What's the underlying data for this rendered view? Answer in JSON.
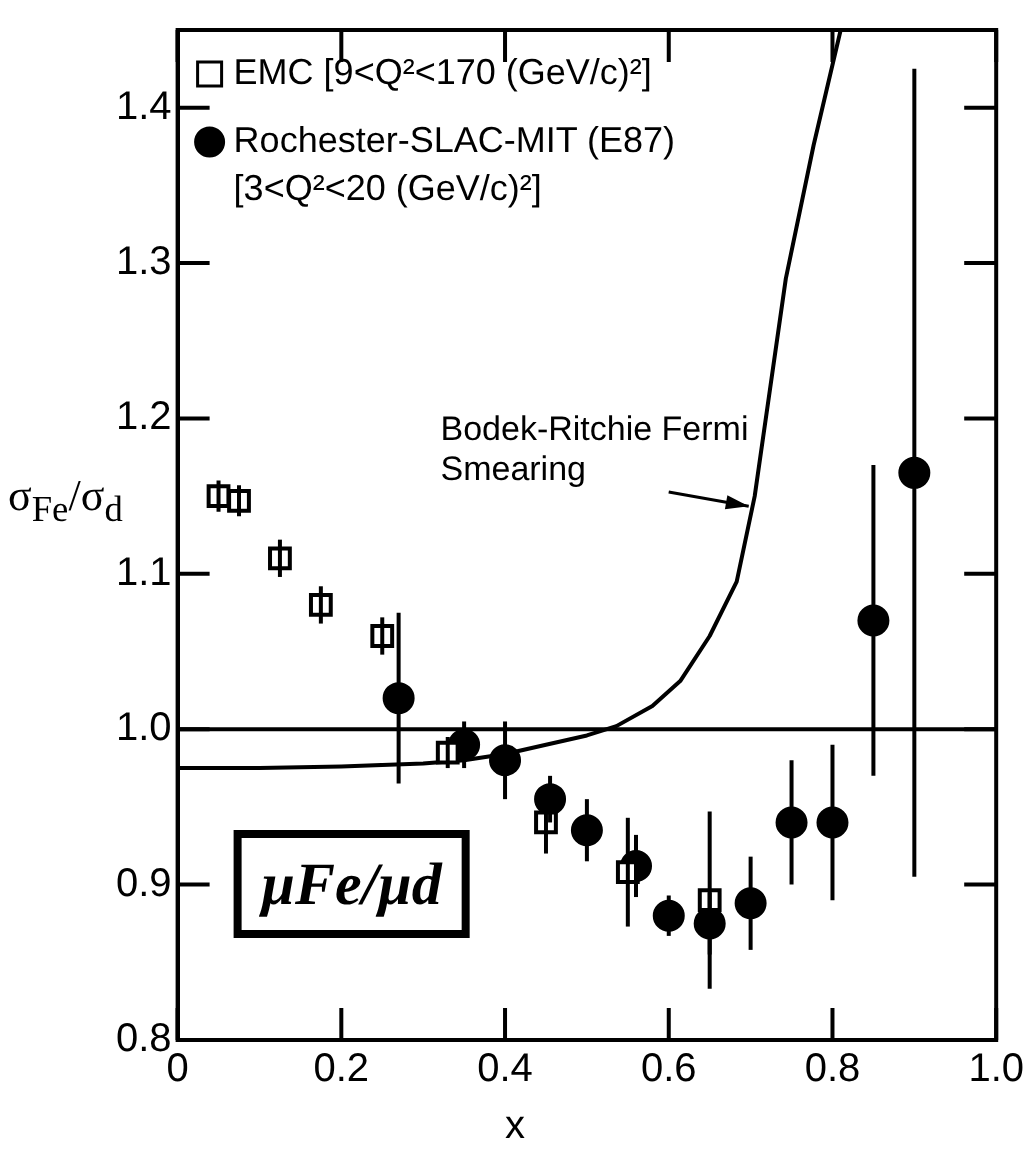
{
  "chart_data": {
    "type": "scatter",
    "xlabel": "x",
    "ylabel": "σ$_{Fe}$/σ$_{d}$",
    "xlim": [
      0,
      1.0
    ],
    "xticks": [
      0,
      0.2,
      0.4,
      0.6,
      0.8,
      {
        "value": 1.0,
        "label": "1.0"
      }
    ],
    "ylim": [
      0.8,
      1.45
    ],
    "yticks": [
      0.8,
      0.9,
      {
        "value": 1.0,
        "label": "1.0"
      },
      1.1,
      1.2,
      1.3,
      1.4
    ],
    "grid": false,
    "legend": "top left",
    "series": [
      {
        "name": "EMC [9<Q²<170 (GeV/c)²]",
        "marker": "square",
        "color": "#000000",
        "x": [
          0.05,
          0.075,
          0.125,
          0.175,
          0.25,
          0.33,
          0.45,
          0.55,
          0.65
        ],
        "values": [
          1.15,
          1.147,
          1.11,
          1.08,
          1.06,
          0.985,
          0.94,
          0.908,
          0.89
        ],
        "errors": [
          0.01,
          0.01,
          0.012,
          0.012,
          0.012,
          0.01,
          0.02,
          0.035,
          0.057
        ]
      },
      {
        "name": "Rochester-SLAC-MIT (E87) [3<Q²<20 (GeV/c)²]",
        "marker": "circle",
        "color": "#000000",
        "x": [
          0.27,
          0.35,
          0.4,
          0.455,
          0.5,
          0.56,
          0.6,
          0.65,
          0.7,
          0.75,
          0.8,
          0.85,
          0.9
        ],
        "values": [
          1.02,
          0.99,
          0.98,
          0.955,
          0.935,
          0.912,
          0.88,
          0.875,
          0.888,
          0.94,
          0.94,
          1.07,
          1.165
        ],
        "errors": [
          0.055,
          0.015,
          0.025,
          0.015,
          0.02,
          0.02,
          0.013,
          0.02,
          0.03,
          0.04,
          0.05,
          0.1,
          0.26
        ]
      },
      {
        "name": "Bodek-Ritchie Fermi Smearing",
        "type": "line",
        "marker": "none",
        "color": "#000000",
        "x": [
          0,
          0.1,
          0.2,
          0.3,
          0.35,
          0.4,
          0.45,
          0.5,
          0.536,
          0.58,
          0.614,
          0.65,
          0.683,
          0.705,
          0.743,
          0.777,
          0.81
        ],
        "values": [
          0.975,
          0.975,
          0.976,
          0.978,
          0.98,
          0.984,
          0.99,
          0.996,
          1.002,
          1.015,
          1.031,
          1.06,
          1.095,
          1.15,
          1.29,
          1.376,
          1.45
        ]
      }
    ],
    "ref_lines": [
      {
        "axis": "y",
        "value": 1.0
      }
    ],
    "annotations": [
      "μFe/μd"
    ]
  }
}
